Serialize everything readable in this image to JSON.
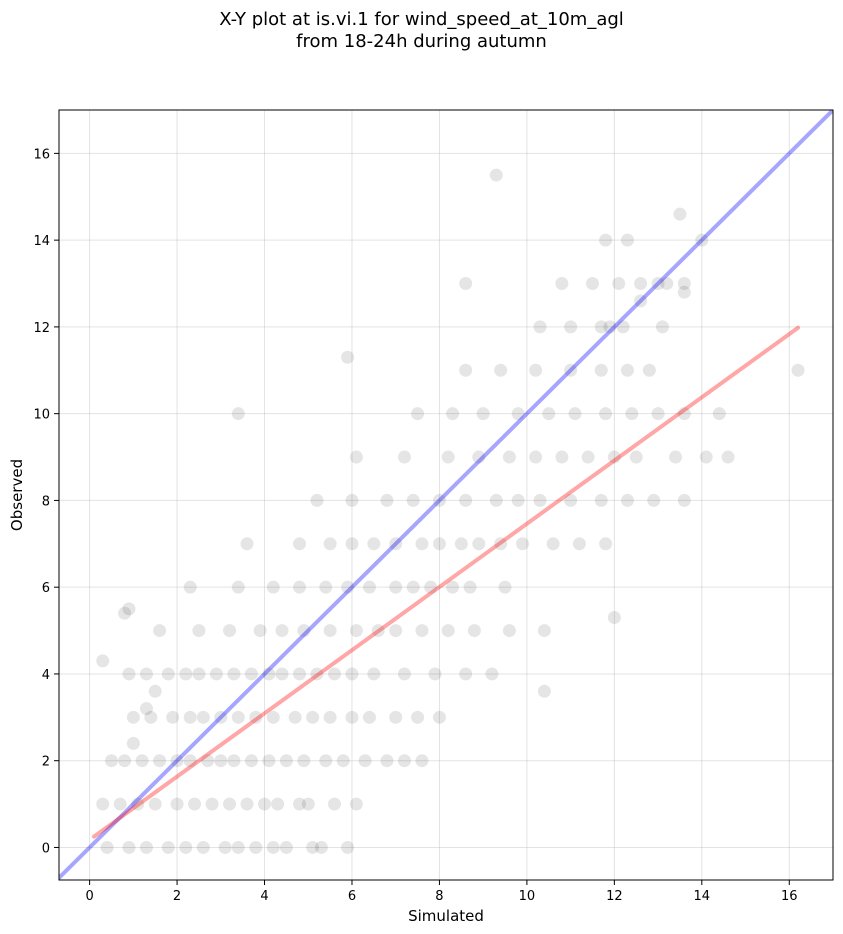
{
  "title_line1": "X-Y plot at is.vi.1 for wind_speed_at_10m_agl",
  "title_line2": "from 18-24h during autumn",
  "chart_data": {
    "type": "scatter",
    "xlabel": "Simulated",
    "ylabel": "Observed",
    "xlim": [
      -0.7,
      17.0
    ],
    "ylim": [
      -0.75,
      17.0
    ],
    "xticks": [
      0,
      2,
      4,
      6,
      8,
      10,
      12,
      14,
      16
    ],
    "yticks": [
      0,
      2,
      4,
      6,
      8,
      10,
      12,
      14,
      16
    ],
    "grid": true,
    "point_color": "#000000",
    "point_opacity": 0.1,
    "identity_line": {
      "x": [
        -0.7,
        17.0
      ],
      "y": [
        -0.7,
        17.0
      ],
      "color": "#0000ff",
      "opacity": 0.35
    },
    "fit_line": {
      "x": [
        0.1,
        16.2
      ],
      "y": [
        0.25,
        11.98
      ],
      "color": "#ff0000",
      "opacity": 0.35
    },
    "series": [
      {
        "x": [
          0.4,
          0.9,
          1.3,
          1.8,
          2.2,
          2.6,
          3.1,
          3.4,
          3.8,
          4.2,
          4.5,
          5.1,
          5.3,
          5.9,
          0.3,
          0.7,
          1.1,
          1.5,
          2.0,
          2.4,
          2.8,
          3.2,
          3.6,
          4.0,
          4.3,
          4.8,
          5.0,
          5.6,
          6.1,
          0.5,
          0.8,
          1.2,
          1.6,
          2.0,
          2.3,
          2.7,
          3.0,
          3.3,
          3.7,
          4.1,
          4.5,
          4.9,
          5.4,
          5.8,
          6.3,
          6.8,
          7.2,
          7.6,
          1.0,
          1.4,
          1.9,
          2.3,
          2.6,
          3.0,
          3.4,
          3.8,
          4.2,
          4.7,
          5.1,
          5.5,
          6.0,
          6.4,
          7.0,
          7.5,
          8.0,
          0.9,
          1.3,
          1.8,
          2.2,
          2.5,
          2.9,
          3.3,
          3.7,
          4.1,
          4.4,
          4.8,
          5.2,
          5.6,
          6.0,
          6.5,
          7.2,
          7.9,
          8.6,
          9.2,
          1.6,
          2.5,
          3.2,
          3.9,
          4.4,
          4.9,
          5.5,
          6.1,
          6.6,
          7.0,
          7.6,
          8.2,
          8.8,
          9.6,
          10.4,
          2.3,
          3.4,
          4.2,
          4.8,
          5.4,
          5.9,
          6.4,
          7.0,
          7.4,
          7.8,
          8.3,
          8.7,
          9.5,
          3.6,
          4.8,
          5.5,
          6.0,
          6.5,
          7.0,
          7.6,
          8.0,
          8.5,
          8.9,
          9.4,
          9.9,
          10.6,
          11.2,
          11.8,
          5.2,
          6.0,
          6.8,
          7.4,
          8.0,
          8.6,
          9.3,
          9.8,
          10.3,
          11.0,
          11.7,
          12.3,
          12.9,
          13.6,
          6.1,
          7.2,
          8.2,
          8.9,
          9.6,
          10.2,
          10.8,
          11.4,
          12.0,
          12.5,
          13.4,
          14.1,
          14.6,
          7.5,
          8.3,
          9.0,
          9.8,
          10.5,
          11.1,
          11.8,
          12.4,
          13.0,
          13.6,
          14.4,
          8.6,
          9.4,
          10.2,
          11.0,
          11.7,
          12.3,
          12.8,
          10.3,
          11.0,
          11.7,
          12.2,
          13.1,
          10.8,
          11.5,
          12.1,
          12.6,
          13.6,
          11.8,
          12.3,
          13.5,
          13.2,
          12.6,
          13.0,
          11.9,
          14.0,
          13.6,
          16.2,
          8.6,
          5.9,
          3.4,
          9.3,
          10.4,
          12.0,
          0.3,
          0.9,
          1.0,
          0.8,
          1.3,
          1.5
        ],
        "y": [
          0,
          0,
          0,
          0,
          0,
          0,
          0,
          0,
          0,
          0,
          0,
          0,
          0,
          0,
          1,
          1,
          1,
          1,
          1,
          1,
          1,
          1,
          1,
          1,
          1,
          1,
          1,
          1,
          1,
          2,
          2,
          2,
          2,
          2,
          2,
          2,
          2,
          2,
          2,
          2,
          2,
          2,
          2,
          2,
          2,
          2,
          2,
          2,
          3,
          3,
          3,
          3,
          3,
          3,
          3,
          3,
          3,
          3,
          3,
          3,
          3,
          3,
          3,
          3,
          3,
          4,
          4,
          4,
          4,
          4,
          4,
          4,
          4,
          4,
          4,
          4,
          4,
          4,
          4,
          4,
          4,
          4,
          4,
          4,
          5,
          5,
          5,
          5,
          5,
          5,
          5,
          5,
          5,
          5,
          5,
          5,
          5,
          5,
          5,
          6,
          6,
          6,
          6,
          6,
          6,
          6,
          6,
          6,
          6,
          6,
          6,
          6,
          7,
          7,
          7,
          7,
          7,
          7,
          7,
          7,
          7,
          7,
          7,
          7,
          7,
          7,
          7,
          8,
          8,
          8,
          8,
          8,
          8,
          8,
          8,
          8,
          8,
          8,
          8,
          8,
          8,
          9,
          9,
          9,
          9,
          9,
          9,
          9,
          9,
          9,
          9,
          9,
          9,
          9,
          10,
          10,
          10,
          10,
          10,
          10,
          10,
          10,
          10,
          10,
          10,
          11,
          11,
          11,
          11,
          11,
          11,
          11,
          12,
          12,
          12,
          12,
          12,
          13,
          13,
          13,
          13,
          13,
          14,
          14,
          14.6,
          13,
          12.6,
          13,
          12,
          14,
          12.8,
          11,
          13,
          11.3,
          10,
          15.5,
          3.6,
          5.3,
          4.3,
          5.5,
          2.4,
          5.4,
          3.2,
          3.6
        ]
      }
    ]
  }
}
